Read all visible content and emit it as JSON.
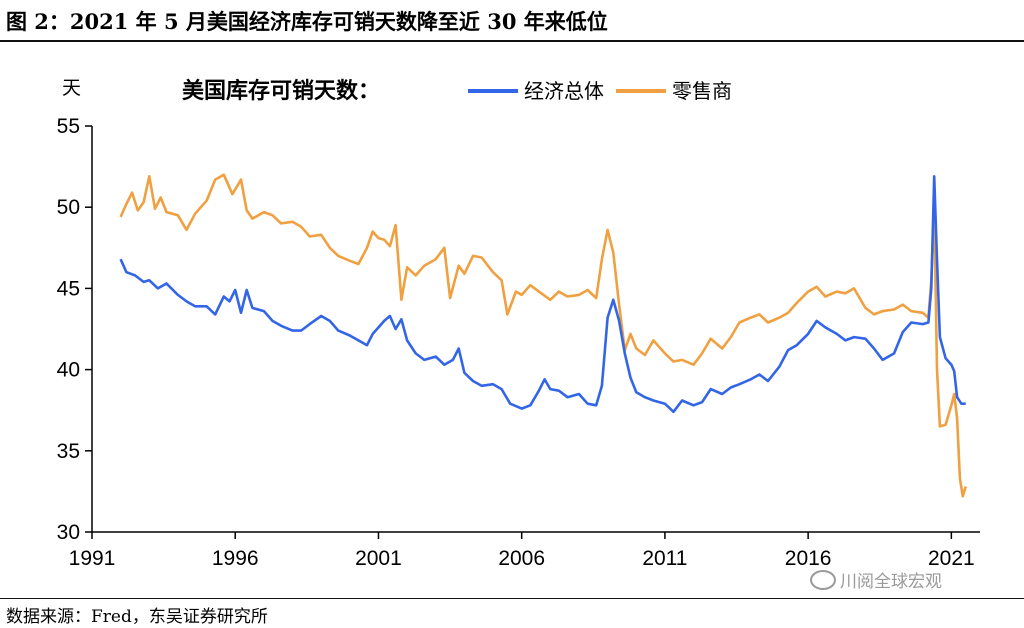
{
  "figure": {
    "title": "图 2：2021 年 5 月美国经济库存可销天数降至近 30 年来低位",
    "source": "数据来源：Fred，东吴证券研究所",
    "watermark": "川阅全球宏观",
    "watermark_icon": "wechat-icon"
  },
  "chart_data": {
    "type": "line",
    "legend_title": "美国库存可销天数：",
    "ylabel": "天",
    "ylim": [
      30,
      55
    ],
    "yticks": [
      30,
      35,
      40,
      45,
      50,
      55
    ],
    "xlim": [
      1991,
      2022
    ],
    "xticks": [
      1991,
      1996,
      2001,
      2006,
      2011,
      2016,
      2021
    ],
    "grid": false,
    "legend_position": "top",
    "series": [
      {
        "name": "经济总体",
        "color": "#3366e6",
        "points": [
          [
            1992.0,
            46.8
          ],
          [
            1992.2,
            46.0
          ],
          [
            1992.5,
            45.8
          ],
          [
            1992.8,
            45.4
          ],
          [
            1993.0,
            45.5
          ],
          [
            1993.3,
            45.0
          ],
          [
            1993.6,
            45.3
          ],
          [
            1994.0,
            44.6
          ],
          [
            1994.3,
            44.2
          ],
          [
            1994.6,
            43.9
          ],
          [
            1995.0,
            43.9
          ],
          [
            1995.3,
            43.4
          ],
          [
            1995.6,
            44.5
          ],
          [
            1995.8,
            44.2
          ],
          [
            1996.0,
            44.9
          ],
          [
            1996.2,
            43.5
          ],
          [
            1996.4,
            44.9
          ],
          [
            1996.6,
            43.8
          ],
          [
            1997.0,
            43.6
          ],
          [
            1997.3,
            43.0
          ],
          [
            1997.6,
            42.7
          ],
          [
            1998.0,
            42.4
          ],
          [
            1998.3,
            42.4
          ],
          [
            1998.6,
            42.8
          ],
          [
            1999.0,
            43.3
          ],
          [
            1999.3,
            43.0
          ],
          [
            1999.6,
            42.4
          ],
          [
            2000.0,
            42.1
          ],
          [
            2000.3,
            41.8
          ],
          [
            2000.6,
            41.5
          ],
          [
            2000.8,
            42.2
          ],
          [
            2001.0,
            42.6
          ],
          [
            2001.2,
            43.0
          ],
          [
            2001.4,
            43.3
          ],
          [
            2001.6,
            42.5
          ],
          [
            2001.8,
            43.1
          ],
          [
            2002.0,
            41.8
          ],
          [
            2002.3,
            41.0
          ],
          [
            2002.6,
            40.6
          ],
          [
            2003.0,
            40.8
          ],
          [
            2003.3,
            40.3
          ],
          [
            2003.6,
            40.6
          ],
          [
            2003.8,
            41.3
          ],
          [
            2004.0,
            39.8
          ],
          [
            2004.3,
            39.3
          ],
          [
            2004.6,
            39.0
          ],
          [
            2005.0,
            39.1
          ],
          [
            2005.3,
            38.8
          ],
          [
            2005.6,
            37.9
          ],
          [
            2006.0,
            37.6
          ],
          [
            2006.3,
            37.8
          ],
          [
            2006.6,
            38.7
          ],
          [
            2006.8,
            39.4
          ],
          [
            2007.0,
            38.8
          ],
          [
            2007.3,
            38.7
          ],
          [
            2007.6,
            38.3
          ],
          [
            2008.0,
            38.5
          ],
          [
            2008.3,
            37.9
          ],
          [
            2008.6,
            37.8
          ],
          [
            2008.8,
            39.0
          ],
          [
            2009.0,
            43.2
          ],
          [
            2009.2,
            44.3
          ],
          [
            2009.4,
            43.0
          ],
          [
            2009.6,
            41.0
          ],
          [
            2009.8,
            39.5
          ],
          [
            2010.0,
            38.6
          ],
          [
            2010.3,
            38.3
          ],
          [
            2010.6,
            38.1
          ],
          [
            2011.0,
            37.9
          ],
          [
            2011.3,
            37.4
          ],
          [
            2011.6,
            38.1
          ],
          [
            2012.0,
            37.8
          ],
          [
            2012.3,
            38.0
          ],
          [
            2012.6,
            38.8
          ],
          [
            2013.0,
            38.5
          ],
          [
            2013.3,
            38.9
          ],
          [
            2013.6,
            39.1
          ],
          [
            2014.0,
            39.4
          ],
          [
            2014.3,
            39.7
          ],
          [
            2014.6,
            39.3
          ],
          [
            2015.0,
            40.2
          ],
          [
            2015.3,
            41.2
          ],
          [
            2015.6,
            41.5
          ],
          [
            2016.0,
            42.2
          ],
          [
            2016.3,
            43.0
          ],
          [
            2016.6,
            42.6
          ],
          [
            2017.0,
            42.2
          ],
          [
            2017.3,
            41.8
          ],
          [
            2017.6,
            42.0
          ],
          [
            2018.0,
            41.9
          ],
          [
            2018.3,
            41.3
          ],
          [
            2018.6,
            40.6
          ],
          [
            2019.0,
            41.0
          ],
          [
            2019.3,
            42.3
          ],
          [
            2019.6,
            42.9
          ],
          [
            2020.0,
            42.8
          ],
          [
            2020.2,
            42.9
          ],
          [
            2020.3,
            45.0
          ],
          [
            2020.4,
            51.9
          ],
          [
            2020.5,
            46.8
          ],
          [
            2020.6,
            42.0
          ],
          [
            2020.8,
            40.7
          ],
          [
            2021.0,
            40.3
          ],
          [
            2021.1,
            39.9
          ],
          [
            2021.2,
            38.3
          ],
          [
            2021.35,
            37.9
          ],
          [
            2021.5,
            37.9
          ]
        ]
      },
      {
        "name": "零售商",
        "color": "#f0a040",
        "points": [
          [
            1992.0,
            49.4
          ],
          [
            1992.2,
            50.2
          ],
          [
            1992.4,
            50.9
          ],
          [
            1992.6,
            49.8
          ],
          [
            1992.8,
            50.3
          ],
          [
            1993.0,
            51.9
          ],
          [
            1993.2,
            49.9
          ],
          [
            1993.4,
            50.6
          ],
          [
            1993.6,
            49.7
          ],
          [
            1994.0,
            49.5
          ],
          [
            1994.3,
            48.6
          ],
          [
            1994.6,
            49.6
          ],
          [
            1995.0,
            50.4
          ],
          [
            1995.3,
            51.7
          ],
          [
            1995.6,
            52.0
          ],
          [
            1995.9,
            50.8
          ],
          [
            1996.2,
            51.7
          ],
          [
            1996.4,
            49.8
          ],
          [
            1996.6,
            49.3
          ],
          [
            1997.0,
            49.7
          ],
          [
            1997.3,
            49.5
          ],
          [
            1997.6,
            49.0
          ],
          [
            1998.0,
            49.1
          ],
          [
            1998.3,
            48.8
          ],
          [
            1998.6,
            48.2
          ],
          [
            1999.0,
            48.3
          ],
          [
            1999.3,
            47.5
          ],
          [
            1999.6,
            47.0
          ],
          [
            2000.0,
            46.7
          ],
          [
            2000.3,
            46.5
          ],
          [
            2000.6,
            47.5
          ],
          [
            2000.8,
            48.5
          ],
          [
            2001.0,
            48.1
          ],
          [
            2001.2,
            48.0
          ],
          [
            2001.4,
            47.6
          ],
          [
            2001.6,
            48.9
          ],
          [
            2001.8,
            44.3
          ],
          [
            2002.0,
            46.3
          ],
          [
            2002.3,
            45.8
          ],
          [
            2002.6,
            46.4
          ],
          [
            2003.0,
            46.8
          ],
          [
            2003.3,
            47.5
          ],
          [
            2003.5,
            44.4
          ],
          [
            2003.8,
            46.4
          ],
          [
            2004.0,
            45.9
          ],
          [
            2004.3,
            47.0
          ],
          [
            2004.6,
            46.9
          ],
          [
            2005.0,
            46.0
          ],
          [
            2005.3,
            45.5
          ],
          [
            2005.5,
            43.4
          ],
          [
            2005.8,
            44.8
          ],
          [
            2006.0,
            44.6
          ],
          [
            2006.3,
            45.2
          ],
          [
            2006.6,
            44.8
          ],
          [
            2007.0,
            44.3
          ],
          [
            2007.3,
            44.8
          ],
          [
            2007.6,
            44.5
          ],
          [
            2008.0,
            44.6
          ],
          [
            2008.3,
            44.9
          ],
          [
            2008.6,
            44.4
          ],
          [
            2008.8,
            46.8
          ],
          [
            2009.0,
            48.6
          ],
          [
            2009.2,
            47.2
          ],
          [
            2009.4,
            44.0
          ],
          [
            2009.6,
            41.2
          ],
          [
            2009.8,
            42.2
          ],
          [
            2010.0,
            41.3
          ],
          [
            2010.3,
            40.9
          ],
          [
            2010.6,
            41.8
          ],
          [
            2011.0,
            41.0
          ],
          [
            2011.3,
            40.5
          ],
          [
            2011.6,
            40.6
          ],
          [
            2012.0,
            40.3
          ],
          [
            2012.3,
            41.0
          ],
          [
            2012.6,
            41.9
          ],
          [
            2013.0,
            41.3
          ],
          [
            2013.3,
            42.0
          ],
          [
            2013.6,
            42.9
          ],
          [
            2014.0,
            43.2
          ],
          [
            2014.3,
            43.4
          ],
          [
            2014.6,
            42.9
          ],
          [
            2015.0,
            43.2
          ],
          [
            2015.3,
            43.5
          ],
          [
            2015.6,
            44.1
          ],
          [
            2016.0,
            44.8
          ],
          [
            2016.3,
            45.1
          ],
          [
            2016.6,
            44.5
          ],
          [
            2017.0,
            44.8
          ],
          [
            2017.3,
            44.7
          ],
          [
            2017.6,
            45.0
          ],
          [
            2018.0,
            43.8
          ],
          [
            2018.3,
            43.4
          ],
          [
            2018.6,
            43.6
          ],
          [
            2019.0,
            43.7
          ],
          [
            2019.3,
            44.0
          ],
          [
            2019.6,
            43.6
          ],
          [
            2020.0,
            43.5
          ],
          [
            2020.2,
            43.2
          ],
          [
            2020.3,
            45.5
          ],
          [
            2020.4,
            50.2
          ],
          [
            2020.5,
            40.0
          ],
          [
            2020.6,
            36.5
          ],
          [
            2020.8,
            36.6
          ],
          [
            2021.0,
            37.8
          ],
          [
            2021.1,
            38.5
          ],
          [
            2021.2,
            37.0
          ],
          [
            2021.3,
            33.3
          ],
          [
            2021.4,
            32.2
          ],
          [
            2021.5,
            32.8
          ]
        ]
      }
    ]
  }
}
